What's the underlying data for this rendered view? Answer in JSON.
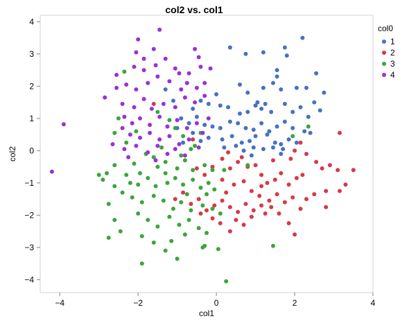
{
  "chart_data": {
    "type": "scatter",
    "title": "col2 vs. col1",
    "xlabel": "col1",
    "ylabel": "col2",
    "xlim": [
      -4.5,
      4.0
    ],
    "ylim": [
      -4.4,
      4.2
    ],
    "x_ticks": [
      -4,
      -2,
      0,
      2,
      4
    ],
    "y_ticks": [
      4,
      3,
      2,
      1,
      0,
      -1,
      -2,
      -3,
      -4
    ],
    "grid": false,
    "legend": {
      "title": "col0",
      "placement": "right"
    },
    "series": [
      {
        "name": "1",
        "color": "#4472C4",
        "points": [
          [
            2.2,
            3.5
          ],
          [
            0.35,
            3.2
          ],
          [
            0.75,
            3.0
          ],
          [
            1.2,
            3.05
          ],
          [
            1.75,
            3.2
          ],
          [
            1.8,
            2.95
          ],
          [
            1.55,
            2.5
          ],
          [
            1.55,
            2.3
          ],
          [
            1.45,
            2.1
          ],
          [
            2.55,
            2.4
          ],
          [
            2.3,
            1.95
          ],
          [
            0.6,
            2.05
          ],
          [
            0.8,
            1.8
          ],
          [
            1.2,
            1.95
          ],
          [
            1.05,
            1.5
          ],
          [
            1.25,
            1.45
          ],
          [
            1.65,
            1.9
          ],
          [
            2.05,
            1.95
          ],
          [
            2.75,
            1.8
          ],
          [
            2.5,
            1.5
          ],
          [
            -1.3,
            1.9
          ],
          [
            -1.1,
            1.55
          ],
          [
            -0.6,
            1.3
          ],
          [
            -0.4,
            1.55
          ],
          [
            -0.2,
            1.45
          ],
          [
            0.0,
            1.75
          ],
          [
            0.1,
            1.4
          ],
          [
            0.3,
            1.35
          ],
          [
            0.6,
            1.15
          ],
          [
            0.8,
            1.2
          ],
          [
            1.0,
            1.4
          ],
          [
            1.15,
            1.3
          ],
          [
            1.4,
            1.2
          ],
          [
            1.75,
            1.45
          ],
          [
            1.95,
            1.2
          ],
          [
            2.15,
            1.35
          ],
          [
            2.35,
            1.05
          ],
          [
            2.65,
            1.25
          ],
          [
            -0.9,
            1.0
          ],
          [
            -0.7,
            0.85
          ],
          [
            -0.5,
            1.05
          ],
          [
            -0.3,
            0.8
          ],
          [
            -0.1,
            0.75
          ],
          [
            0.1,
            0.7
          ],
          [
            0.35,
            0.9
          ],
          [
            0.55,
            0.85
          ],
          [
            0.75,
            0.7
          ],
          [
            0.95,
            0.65
          ],
          [
            1.15,
            0.85
          ],
          [
            1.35,
            0.6
          ],
          [
            1.55,
            0.75
          ],
          [
            1.75,
            0.9
          ],
          [
            1.95,
            0.7
          ],
          [
            2.25,
            0.6
          ],
          [
            2.4,
            0.55
          ],
          [
            -0.6,
            0.55
          ],
          [
            -0.2,
            0.4
          ],
          [
            0.15,
            0.35
          ],
          [
            0.4,
            0.45
          ],
          [
            0.65,
            0.25
          ],
          [
            0.85,
            0.3
          ],
          [
            1.0,
            0.45
          ],
          [
            1.3,
            0.5
          ],
          [
            1.5,
            0.25
          ],
          [
            1.65,
            0.2
          ],
          [
            1.85,
            0.35
          ],
          [
            2.05,
            0.25
          ],
          [
            -1.0,
            0.7
          ],
          [
            -0.4,
            0.3
          ],
          [
            0.2,
            0.1
          ],
          [
            0.5,
            0.15
          ],
          [
            0.7,
            0.0
          ],
          [
            0.95,
            0.1
          ],
          [
            1.2,
            0.05
          ],
          [
            1.45,
            0.1
          ],
          [
            1.7,
            0.05
          ],
          [
            0.9,
            -0.15
          ],
          [
            1.65,
            -0.1
          ],
          [
            -0.85,
            0.25
          ]
        ]
      },
      {
        "name": "2",
        "color": "#D63A47",
        "points": [
          [
            3.15,
            0.55
          ],
          [
            2.15,
            0.25
          ],
          [
            2.3,
            -0.1
          ],
          [
            2.55,
            -0.35
          ],
          [
            2.7,
            -0.55
          ],
          [
            2.9,
            -0.45
          ],
          [
            3.1,
            -0.6
          ],
          [
            3.3,
            -1.05
          ],
          [
            3.5,
            -0.6
          ],
          [
            3.15,
            -1.25
          ],
          [
            2.8,
            -1.25
          ],
          [
            2.5,
            -1.35
          ],
          [
            2.2,
            -0.75
          ],
          [
            2.05,
            -0.85
          ],
          [
            1.85,
            -1.05
          ],
          [
            1.65,
            -0.7
          ],
          [
            1.5,
            -0.9
          ],
          [
            1.3,
            -1.0
          ],
          [
            1.15,
            -0.75
          ],
          [
            1.0,
            -0.45
          ],
          [
            0.8,
            -0.5
          ],
          [
            0.55,
            -0.35
          ],
          [
            0.35,
            -0.55
          ],
          [
            0.15,
            -0.25
          ],
          [
            -0.1,
            -0.5
          ],
          [
            -0.3,
            -0.75
          ],
          [
            -0.5,
            -0.55
          ],
          [
            0.15,
            -0.9
          ],
          [
            0.45,
            -1.05
          ],
          [
            0.7,
            -0.95
          ],
          [
            0.9,
            -1.25
          ],
          [
            1.1,
            -1.4
          ],
          [
            1.35,
            -1.55
          ],
          [
            1.55,
            -1.35
          ],
          [
            1.75,
            -1.6
          ],
          [
            1.95,
            -1.45
          ],
          [
            2.15,
            -1.8
          ],
          [
            2.3,
            -1.5
          ],
          [
            1.6,
            -1.95
          ],
          [
            1.4,
            -1.75
          ],
          [
            1.15,
            -1.7
          ],
          [
            0.95,
            -1.85
          ],
          [
            0.75,
            -1.65
          ],
          [
            0.55,
            -1.9
          ],
          [
            0.35,
            -1.75
          ],
          [
            0.15,
            -1.55
          ],
          [
            -0.05,
            -1.7
          ],
          [
            -0.25,
            -1.85
          ],
          [
            -0.45,
            -1.5
          ],
          [
            -0.65,
            -1.65
          ],
          [
            -0.85,
            -1.3
          ],
          [
            -1.05,
            -1.5
          ],
          [
            0.5,
            -2.15
          ],
          [
            0.7,
            -2.3
          ],
          [
            0.9,
            -2.05
          ],
          [
            1.25,
            -1.95
          ],
          [
            1.85,
            -2.25
          ],
          [
            2.0,
            -2.6
          ],
          [
            0.35,
            -2.5
          ],
          [
            0.1,
            -2.25
          ],
          [
            -0.1,
            -2.1
          ],
          [
            -0.4,
            -1.95
          ],
          [
            0.3,
            -0.05
          ],
          [
            0.65,
            -0.2
          ],
          [
            1.45,
            -0.3
          ],
          [
            1.9,
            -0.25
          ],
          [
            2.0,
            0.0
          ],
          [
            2.8,
            -1.75
          ],
          [
            0.25,
            -1.3
          ],
          [
            1.15,
            -1.1
          ],
          [
            -0.6,
            0.35
          ],
          [
            -1.6,
            1.45
          ]
        ]
      },
      {
        "name": "3",
        "color": "#3BA63B",
        "points": [
          [
            -2.35,
            2.45
          ],
          [
            -2.5,
            1.0
          ],
          [
            -2.6,
            0.55
          ],
          [
            -2.3,
            0.25
          ],
          [
            -1.5,
            1.2
          ],
          [
            -1.2,
            0.95
          ],
          [
            -1.05,
            0.7
          ],
          [
            -0.85,
            0.45
          ],
          [
            -0.55,
            0.15
          ],
          [
            -1.4,
            0.1
          ],
          [
            -1.8,
            -0.1
          ],
          [
            -2.1,
            -0.4
          ],
          [
            -1.5,
            -0.5
          ],
          [
            -1.3,
            -0.35
          ],
          [
            -1.0,
            -0.55
          ],
          [
            -0.8,
            -0.3
          ],
          [
            -0.6,
            -0.6
          ],
          [
            -0.3,
            -0.45
          ],
          [
            -0.1,
            -0.6
          ],
          [
            0.2,
            -0.6
          ],
          [
            -2.6,
            -0.45
          ],
          [
            -2.8,
            -0.7
          ],
          [
            -3.0,
            -0.75
          ],
          [
            -2.9,
            -0.9
          ],
          [
            -2.6,
            -1.1
          ],
          [
            -2.3,
            -0.75
          ],
          [
            -2.0,
            -1.05
          ],
          [
            -1.75,
            -0.85
          ],
          [
            -1.55,
            -1.1
          ],
          [
            -1.3,
            -0.7
          ],
          [
            -1.05,
            -0.85
          ],
          [
            -0.85,
            -1.05
          ],
          [
            -0.6,
            -0.9
          ],
          [
            -0.4,
            -1.15
          ],
          [
            -0.2,
            -1.0
          ],
          [
            -0.05,
            -1.2
          ],
          [
            -2.4,
            -1.3
          ],
          [
            -2.15,
            -1.45
          ],
          [
            -1.9,
            -1.6
          ],
          [
            -1.6,
            -1.4
          ],
          [
            -1.35,
            -1.55
          ],
          [
            -1.1,
            -1.8
          ],
          [
            -0.9,
            -1.6
          ],
          [
            -0.65,
            -1.85
          ],
          [
            -0.35,
            -1.7
          ],
          [
            -0.1,
            -1.8
          ],
          [
            0.1,
            -1.95
          ],
          [
            -2.75,
            -1.65
          ],
          [
            -2.6,
            -2.15
          ],
          [
            -2.0,
            -1.95
          ],
          [
            -1.75,
            -2.15
          ],
          [
            -1.5,
            -2.35
          ],
          [
            -1.2,
            -2.05
          ],
          [
            -0.95,
            -2.3
          ],
          [
            -0.7,
            -2.15
          ],
          [
            -0.45,
            -2.4
          ],
          [
            -0.25,
            -2.55
          ],
          [
            -2.75,
            -2.7
          ],
          [
            -2.45,
            -2.5
          ],
          [
            -1.9,
            -2.65
          ],
          [
            -1.6,
            -2.85
          ],
          [
            -1.15,
            -2.8
          ],
          [
            -0.8,
            -2.6
          ],
          [
            -0.3,
            -2.95
          ],
          [
            -1.9,
            -3.5
          ],
          [
            -1.3,
            -3.1
          ],
          [
            -0.35,
            -3.0
          ],
          [
            0.05,
            -3.05
          ],
          [
            -1.0,
            -3.35
          ],
          [
            0.25,
            -4.05
          ],
          [
            1.45,
            -2.95
          ],
          [
            1.95,
            0.45
          ],
          [
            2.35,
            0.75
          ],
          [
            0.8,
            -0.45
          ],
          [
            -0.65,
            0.05
          ],
          [
            -0.4,
            0.55
          ],
          [
            -1.95,
            -0.7
          ],
          [
            -2.05,
            0.6
          ],
          [
            -0.75,
            -1.35
          ],
          [
            -0.25,
            -1.35
          ],
          [
            -1.25,
            -1.0
          ],
          [
            -2.2,
            -1.0
          ],
          [
            -1.6,
            -0.2
          ],
          [
            -0.9,
            -0.15
          ]
        ]
      },
      {
        "name": "4",
        "color": "#9B30D9",
        "points": [
          [
            -1.45,
            3.75
          ],
          [
            -2.0,
            3.45
          ],
          [
            -2.05,
            3.05
          ],
          [
            -1.6,
            3.15
          ],
          [
            -0.55,
            3.15
          ],
          [
            -0.45,
            2.9
          ],
          [
            -0.4,
            2.6
          ],
          [
            -0.15,
            2.55
          ],
          [
            -0.7,
            2.4
          ],
          [
            -1.05,
            2.55
          ],
          [
            -1.3,
            2.85
          ],
          [
            -1.55,
            2.65
          ],
          [
            -1.85,
            2.85
          ],
          [
            -2.1,
            2.6
          ],
          [
            -2.55,
            2.35
          ],
          [
            -2.55,
            1.95
          ],
          [
            -2.3,
            2.05
          ],
          [
            -2.05,
            1.9
          ],
          [
            -1.75,
            2.1
          ],
          [
            -1.5,
            2.3
          ],
          [
            -1.2,
            2.15
          ],
          [
            -0.95,
            2.4
          ],
          [
            -0.75,
            2.1
          ],
          [
            -0.5,
            1.95
          ],
          [
            -0.3,
            2.1
          ],
          [
            -2.85,
            1.65
          ],
          [
            -2.4,
            1.45
          ],
          [
            -2.1,
            1.35
          ],
          [
            -1.85,
            1.6
          ],
          [
            -1.65,
            1.3
          ],
          [
            -1.35,
            1.45
          ],
          [
            -1.05,
            1.35
          ],
          [
            -0.8,
            1.65
          ],
          [
            -0.55,
            1.5
          ],
          [
            -0.3,
            1.7
          ],
          [
            -2.35,
            1.05
          ],
          [
            -2.15,
            0.85
          ],
          [
            -1.95,
            1.0
          ],
          [
            -1.7,
            0.8
          ],
          [
            -1.45,
            1.05
          ],
          [
            -1.25,
            0.75
          ],
          [
            -1.0,
            0.95
          ],
          [
            -0.75,
            0.7
          ],
          [
            -0.5,
            0.85
          ],
          [
            -0.2,
            1.0
          ],
          [
            -2.4,
            0.7
          ],
          [
            -2.2,
            0.5
          ],
          [
            -1.95,
            0.4
          ],
          [
            -1.7,
            0.55
          ],
          [
            -1.45,
            0.35
          ],
          [
            -1.2,
            0.45
          ],
          [
            -0.95,
            0.2
          ],
          [
            -0.7,
            0.35
          ],
          [
            -0.35,
            0.55
          ],
          [
            -2.65,
            0.2
          ],
          [
            -2.35,
            0.05
          ],
          [
            -2.05,
            0.15
          ],
          [
            -1.75,
            -0.05
          ],
          [
            -1.5,
            0.15
          ],
          [
            -1.25,
            -0.1
          ],
          [
            -1.05,
            0.05
          ],
          [
            -0.8,
            -0.15
          ],
          [
            -0.45,
            0.1
          ],
          [
            -3.9,
            0.82
          ],
          [
            -4.2,
            -0.65
          ],
          [
            -1.85,
            2.5
          ],
          [
            -0.9,
            1.9
          ],
          [
            -2.25,
            -0.2
          ],
          [
            -1.55,
            -0.3
          ]
        ]
      }
    ]
  }
}
